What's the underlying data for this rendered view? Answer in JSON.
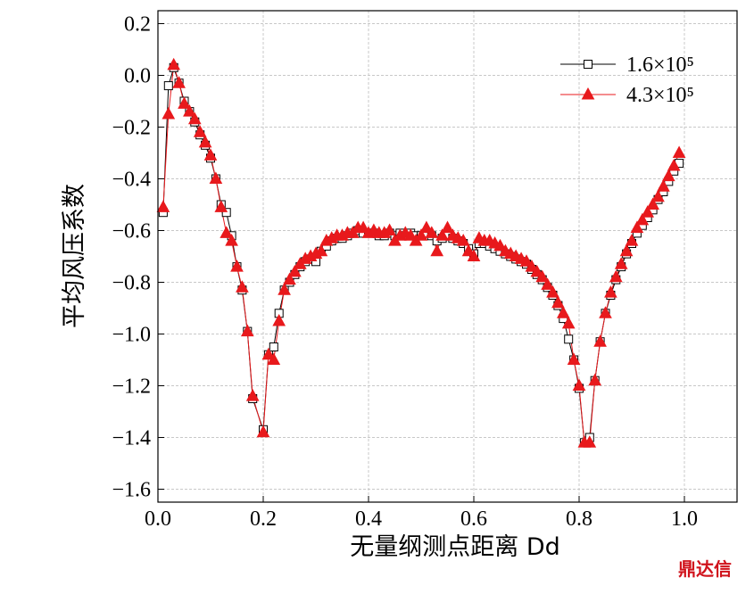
{
  "chart_data": {
    "type": "line",
    "xlabel": "无量纲测点距离 Dd",
    "ylabel": "平均风压系数",
    "watermark": "鼎达信",
    "xlim": [
      0,
      1.1
    ],
    "ylim": [
      -1.65,
      0.25
    ],
    "xticks": [
      {
        "value": 0,
        "label": "0.0"
      },
      0.2,
      0.4,
      0.6,
      0.8,
      {
        "value": 1,
        "label": "1.0"
      }
    ],
    "yticks": [
      0.2,
      {
        "value": 0,
        "label": "0.0"
      },
      {
        "value": -0.2,
        "label": "−0.2"
      },
      {
        "value": -0.4,
        "label": "−0.4"
      },
      {
        "value": -0.6,
        "label": "−0.6"
      },
      {
        "value": -0.8,
        "label": "−0.8"
      },
      {
        "value": -1,
        "label": "−1.0"
      },
      {
        "value": -1.2,
        "label": "−1.2"
      },
      {
        "value": -1.4,
        "label": "−1.4"
      },
      {
        "value": -1.6,
        "label": "−1.6"
      }
    ],
    "grid": true,
    "legend": "upper right",
    "x": [
      0.01,
      0.02,
      0.03,
      0.04,
      0.05,
      0.06,
      0.07,
      0.08,
      0.09,
      0.1,
      0.11,
      0.12,
      0.13,
      0.14,
      0.15,
      0.16,
      0.17,
      0.18,
      0.2,
      0.21,
      0.22,
      0.23,
      0.24,
      0.25,
      0.26,
      0.27,
      0.28,
      0.29,
      0.3,
      0.31,
      0.32,
      0.33,
      0.34,
      0.35,
      0.36,
      0.37,
      0.38,
      0.39,
      0.4,
      0.41,
      0.42,
      0.43,
      0.44,
      0.45,
      0.46,
      0.47,
      0.48,
      0.49,
      0.5,
      0.51,
      0.52,
      0.53,
      0.54,
      0.55,
      0.56,
      0.57,
      0.58,
      0.59,
      0.6,
      0.61,
      0.62,
      0.63,
      0.64,
      0.65,
      0.66,
      0.67,
      0.68,
      0.69,
      0.7,
      0.71,
      0.72,
      0.73,
      0.74,
      0.75,
      0.76,
      0.77,
      0.78,
      0.79,
      0.8,
      0.81,
      0.82,
      0.83,
      0.84,
      0.85,
      0.86,
      0.87,
      0.88,
      0.89,
      0.9,
      0.91,
      0.92,
      0.93,
      0.94,
      0.95,
      0.96,
      0.97,
      0.98,
      0.99
    ],
    "series": [
      {
        "name": "1.6×10⁵",
        "color": "#000000",
        "marker": "square",
        "values": [
          -0.53,
          -0.04,
          0.03,
          -0.03,
          -0.1,
          -0.14,
          -0.18,
          -0.23,
          -0.27,
          -0.32,
          -0.4,
          -0.5,
          -0.53,
          -0.62,
          -0.74,
          -0.83,
          -0.99,
          -1.25,
          -1.37,
          -1.08,
          -1.05,
          -0.92,
          -0.83,
          -0.8,
          -0.77,
          -0.74,
          -0.72,
          -0.71,
          -0.72,
          -0.68,
          -0.66,
          -0.64,
          -0.63,
          -0.63,
          -0.62,
          -0.61,
          -0.6,
          -0.61,
          -0.61,
          -0.61,
          -0.62,
          -0.62,
          -0.61,
          -0.62,
          -0.61,
          -0.62,
          -0.61,
          -0.62,
          -0.62,
          -0.61,
          -0.62,
          -0.64,
          -0.63,
          -0.62,
          -0.63,
          -0.64,
          -0.65,
          -0.67,
          -0.69,
          -0.65,
          -0.65,
          -0.66,
          -0.67,
          -0.68,
          -0.69,
          -0.7,
          -0.71,
          -0.72,
          -0.73,
          -0.75,
          -0.77,
          -0.79,
          -0.82,
          -0.85,
          -0.89,
          -0.94,
          -1.02,
          -1.1,
          -1.21,
          -1.42,
          -1.4,
          -1.18,
          -1.03,
          -0.92,
          -0.85,
          -0.79,
          -0.74,
          -0.69,
          -0.65,
          -0.61,
          -0.58,
          -0.55,
          -0.52,
          -0.48,
          -0.45,
          -0.41,
          -0.37,
          -0.34
        ]
      },
      {
        "name": "4.3×10⁵",
        "color": "#e8191c",
        "marker": "triangle",
        "values": [
          -0.51,
          -0.15,
          0.04,
          -0.03,
          -0.11,
          -0.14,
          -0.17,
          -0.22,
          -0.26,
          -0.31,
          -0.4,
          -0.51,
          -0.61,
          -0.64,
          -0.74,
          -0.82,
          -0.99,
          -1.24,
          -1.38,
          -1.08,
          -1.1,
          -0.95,
          -0.83,
          -0.79,
          -0.76,
          -0.73,
          -0.71,
          -0.7,
          -0.69,
          -0.68,
          -0.64,
          -0.63,
          -0.62,
          -0.62,
          -0.61,
          -0.61,
          -0.59,
          -0.59,
          -0.61,
          -0.6,
          -0.61,
          -0.61,
          -0.6,
          -0.64,
          -0.62,
          -0.61,
          -0.62,
          -0.64,
          -0.62,
          -0.59,
          -0.61,
          -0.68,
          -0.62,
          -0.59,
          -0.62,
          -0.63,
          -0.64,
          -0.68,
          -0.7,
          -0.63,
          -0.64,
          -0.64,
          -0.65,
          -0.66,
          -0.68,
          -0.69,
          -0.7,
          -0.71,
          -0.72,
          -0.74,
          -0.76,
          -0.78,
          -0.81,
          -0.84,
          -0.88,
          -0.92,
          -0.96,
          -1.1,
          -1.2,
          -1.42,
          -1.42,
          -1.18,
          -1.03,
          -0.92,
          -0.84,
          -0.78,
          -0.73,
          -0.68,
          -0.64,
          -0.59,
          -0.56,
          -0.53,
          -0.5,
          -0.47,
          -0.43,
          -0.39,
          -0.35,
          -0.3
        ]
      }
    ]
  }
}
